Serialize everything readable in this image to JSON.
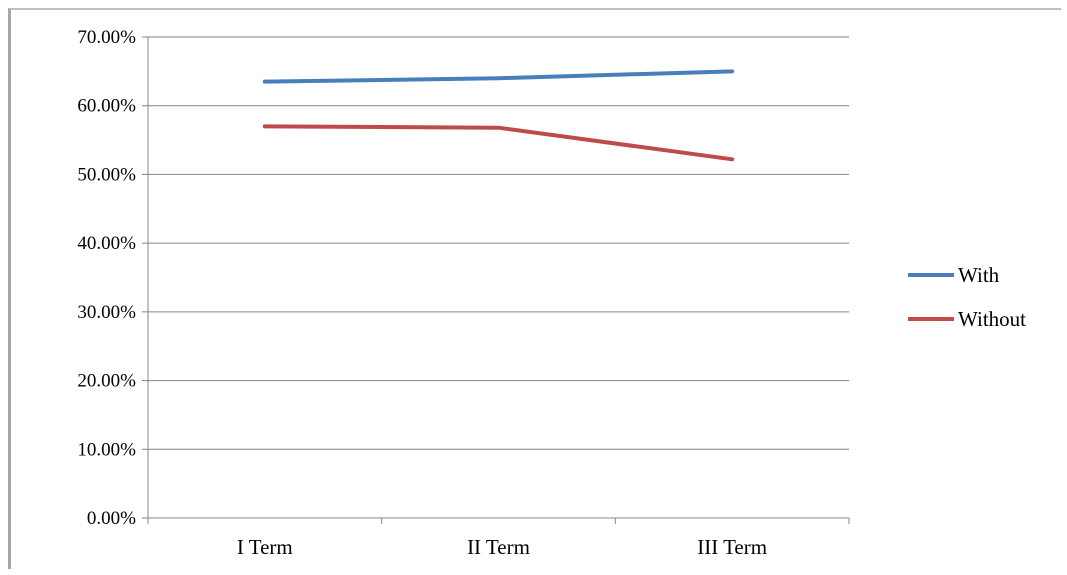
{
  "chart_data": {
    "type": "line",
    "title": "",
    "xlabel": "",
    "ylabel": "",
    "categories": [
      "I Term",
      "II Term",
      "III Term"
    ],
    "series": [
      {
        "name": "With",
        "values": [
          63.5,
          64.0,
          65.0
        ],
        "color": "#4a7ebb"
      },
      {
        "name": "Without",
        "values": [
          57.0,
          56.8,
          52.2
        ],
        "color": "#be4b48"
      }
    ],
    "ylim": [
      0,
      70
    ],
    "y_ticks": [
      0,
      10,
      20,
      30,
      40,
      50,
      60,
      70
    ],
    "y_tick_labels": [
      "0.00%",
      "10.00%",
      "20.00%",
      "30.00%",
      "40.00%",
      "50.00%",
      "60.00%",
      "70.00%"
    ],
    "grid": true,
    "gridline_color": "#868686",
    "legend": "right"
  }
}
